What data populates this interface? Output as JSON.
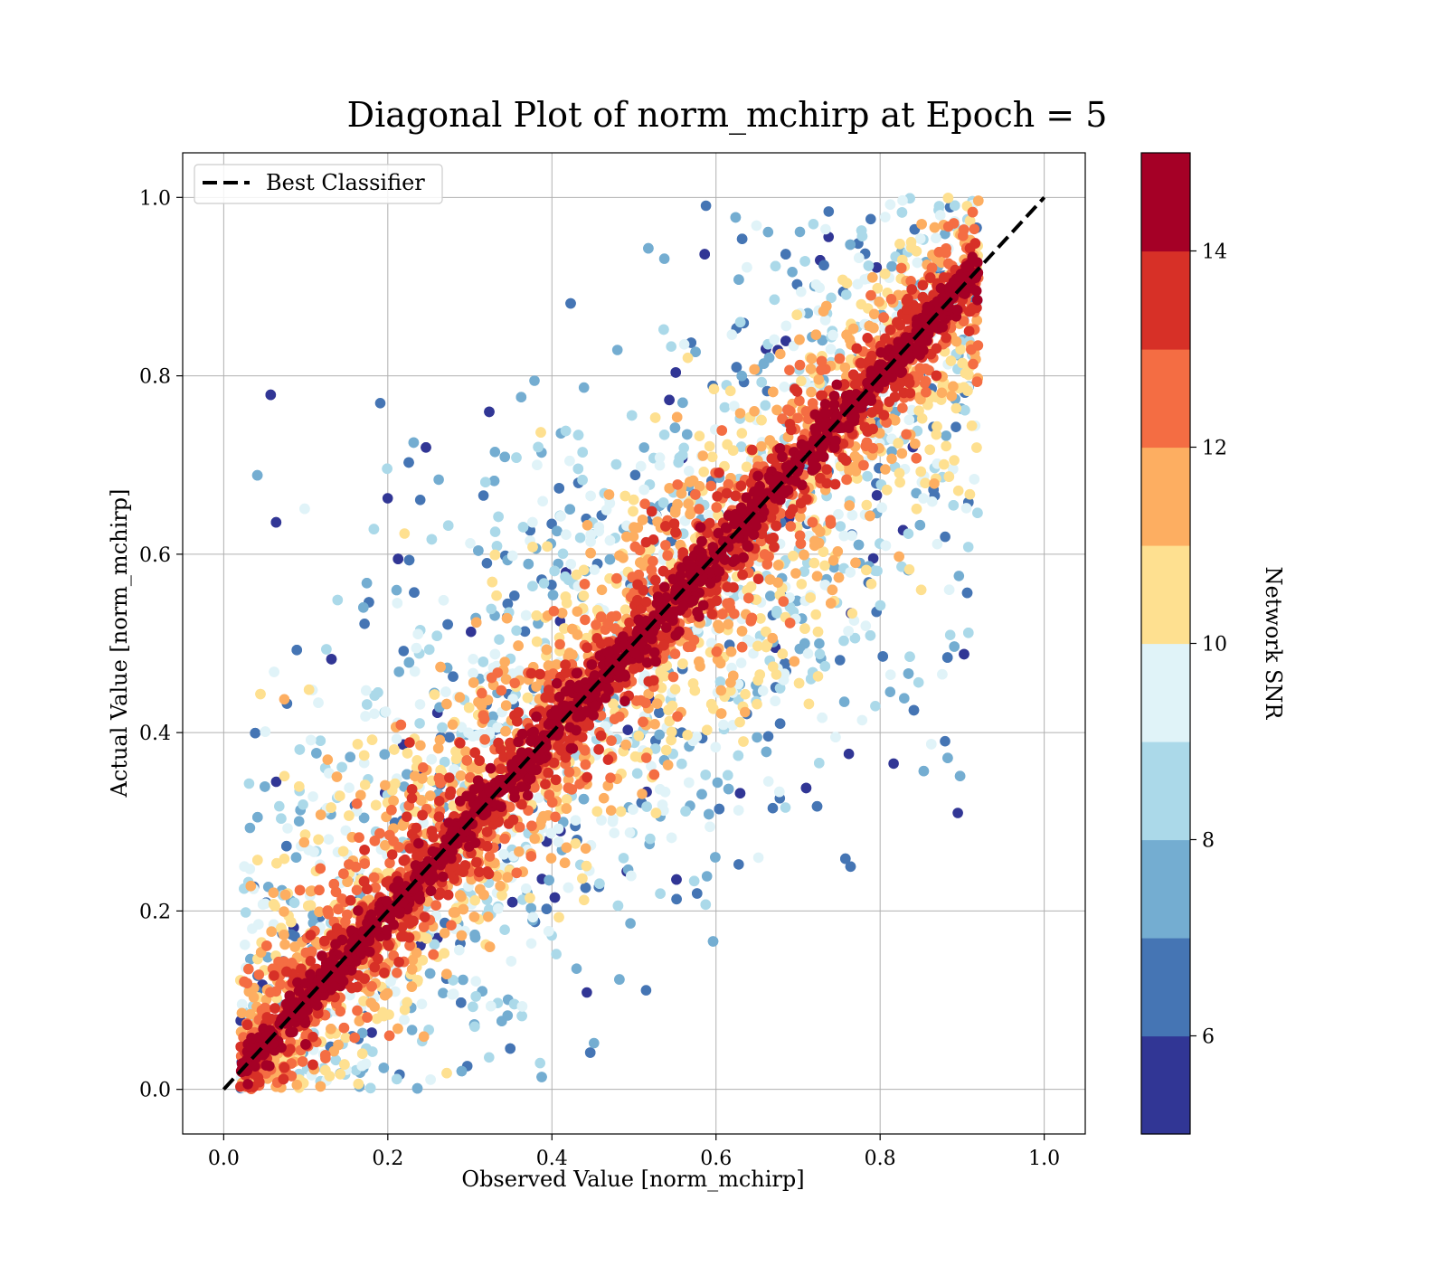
{
  "chart_data": {
    "type": "scatter",
    "title": "Diagonal Plot of norm_mchirp at Epoch = 5",
    "xlabel": "Observed Value [norm_mchirp]",
    "ylabel": "Actual Value [norm_mchirp]",
    "xlim": [
      -0.05,
      1.05
    ],
    "ylim": [
      -0.05,
      1.05
    ],
    "xticks": [
      "0.0",
      "0.2",
      "0.4",
      "0.6",
      "0.8",
      "1.0"
    ],
    "yticks": [
      "0.0",
      "0.2",
      "0.4",
      "0.6",
      "0.8",
      "1.0"
    ],
    "grid": true,
    "legend": {
      "placement": "top-left",
      "entries": [
        "Best Classifier"
      ]
    },
    "reference_line": {
      "name": "Best Classifier",
      "style": "dashed",
      "color": "#000000",
      "x": [
        0.0,
        1.0
      ],
      "y": [
        0.0,
        1.0
      ]
    },
    "colorbar": {
      "label": "Network SNR",
      "min": 5,
      "max": 15,
      "ticks": [
        "6",
        "8",
        "10",
        "12",
        "14"
      ],
      "colors": [
        "#313695",
        "#4575b4",
        "#74add1",
        "#abd9e9",
        "#e0f3f8",
        "#fee090",
        "#fdae61",
        "#f46d43",
        "#d73027",
        "#a50026"
      ]
    },
    "scatter_distribution": {
      "x_range": [
        0.02,
        0.92
      ],
      "y_range": [
        0.0,
        1.0
      ],
      "note_points": "dense cloud around the diagonal y = x, high SNR near the diagonal, low SNR spread farther away"
    }
  }
}
